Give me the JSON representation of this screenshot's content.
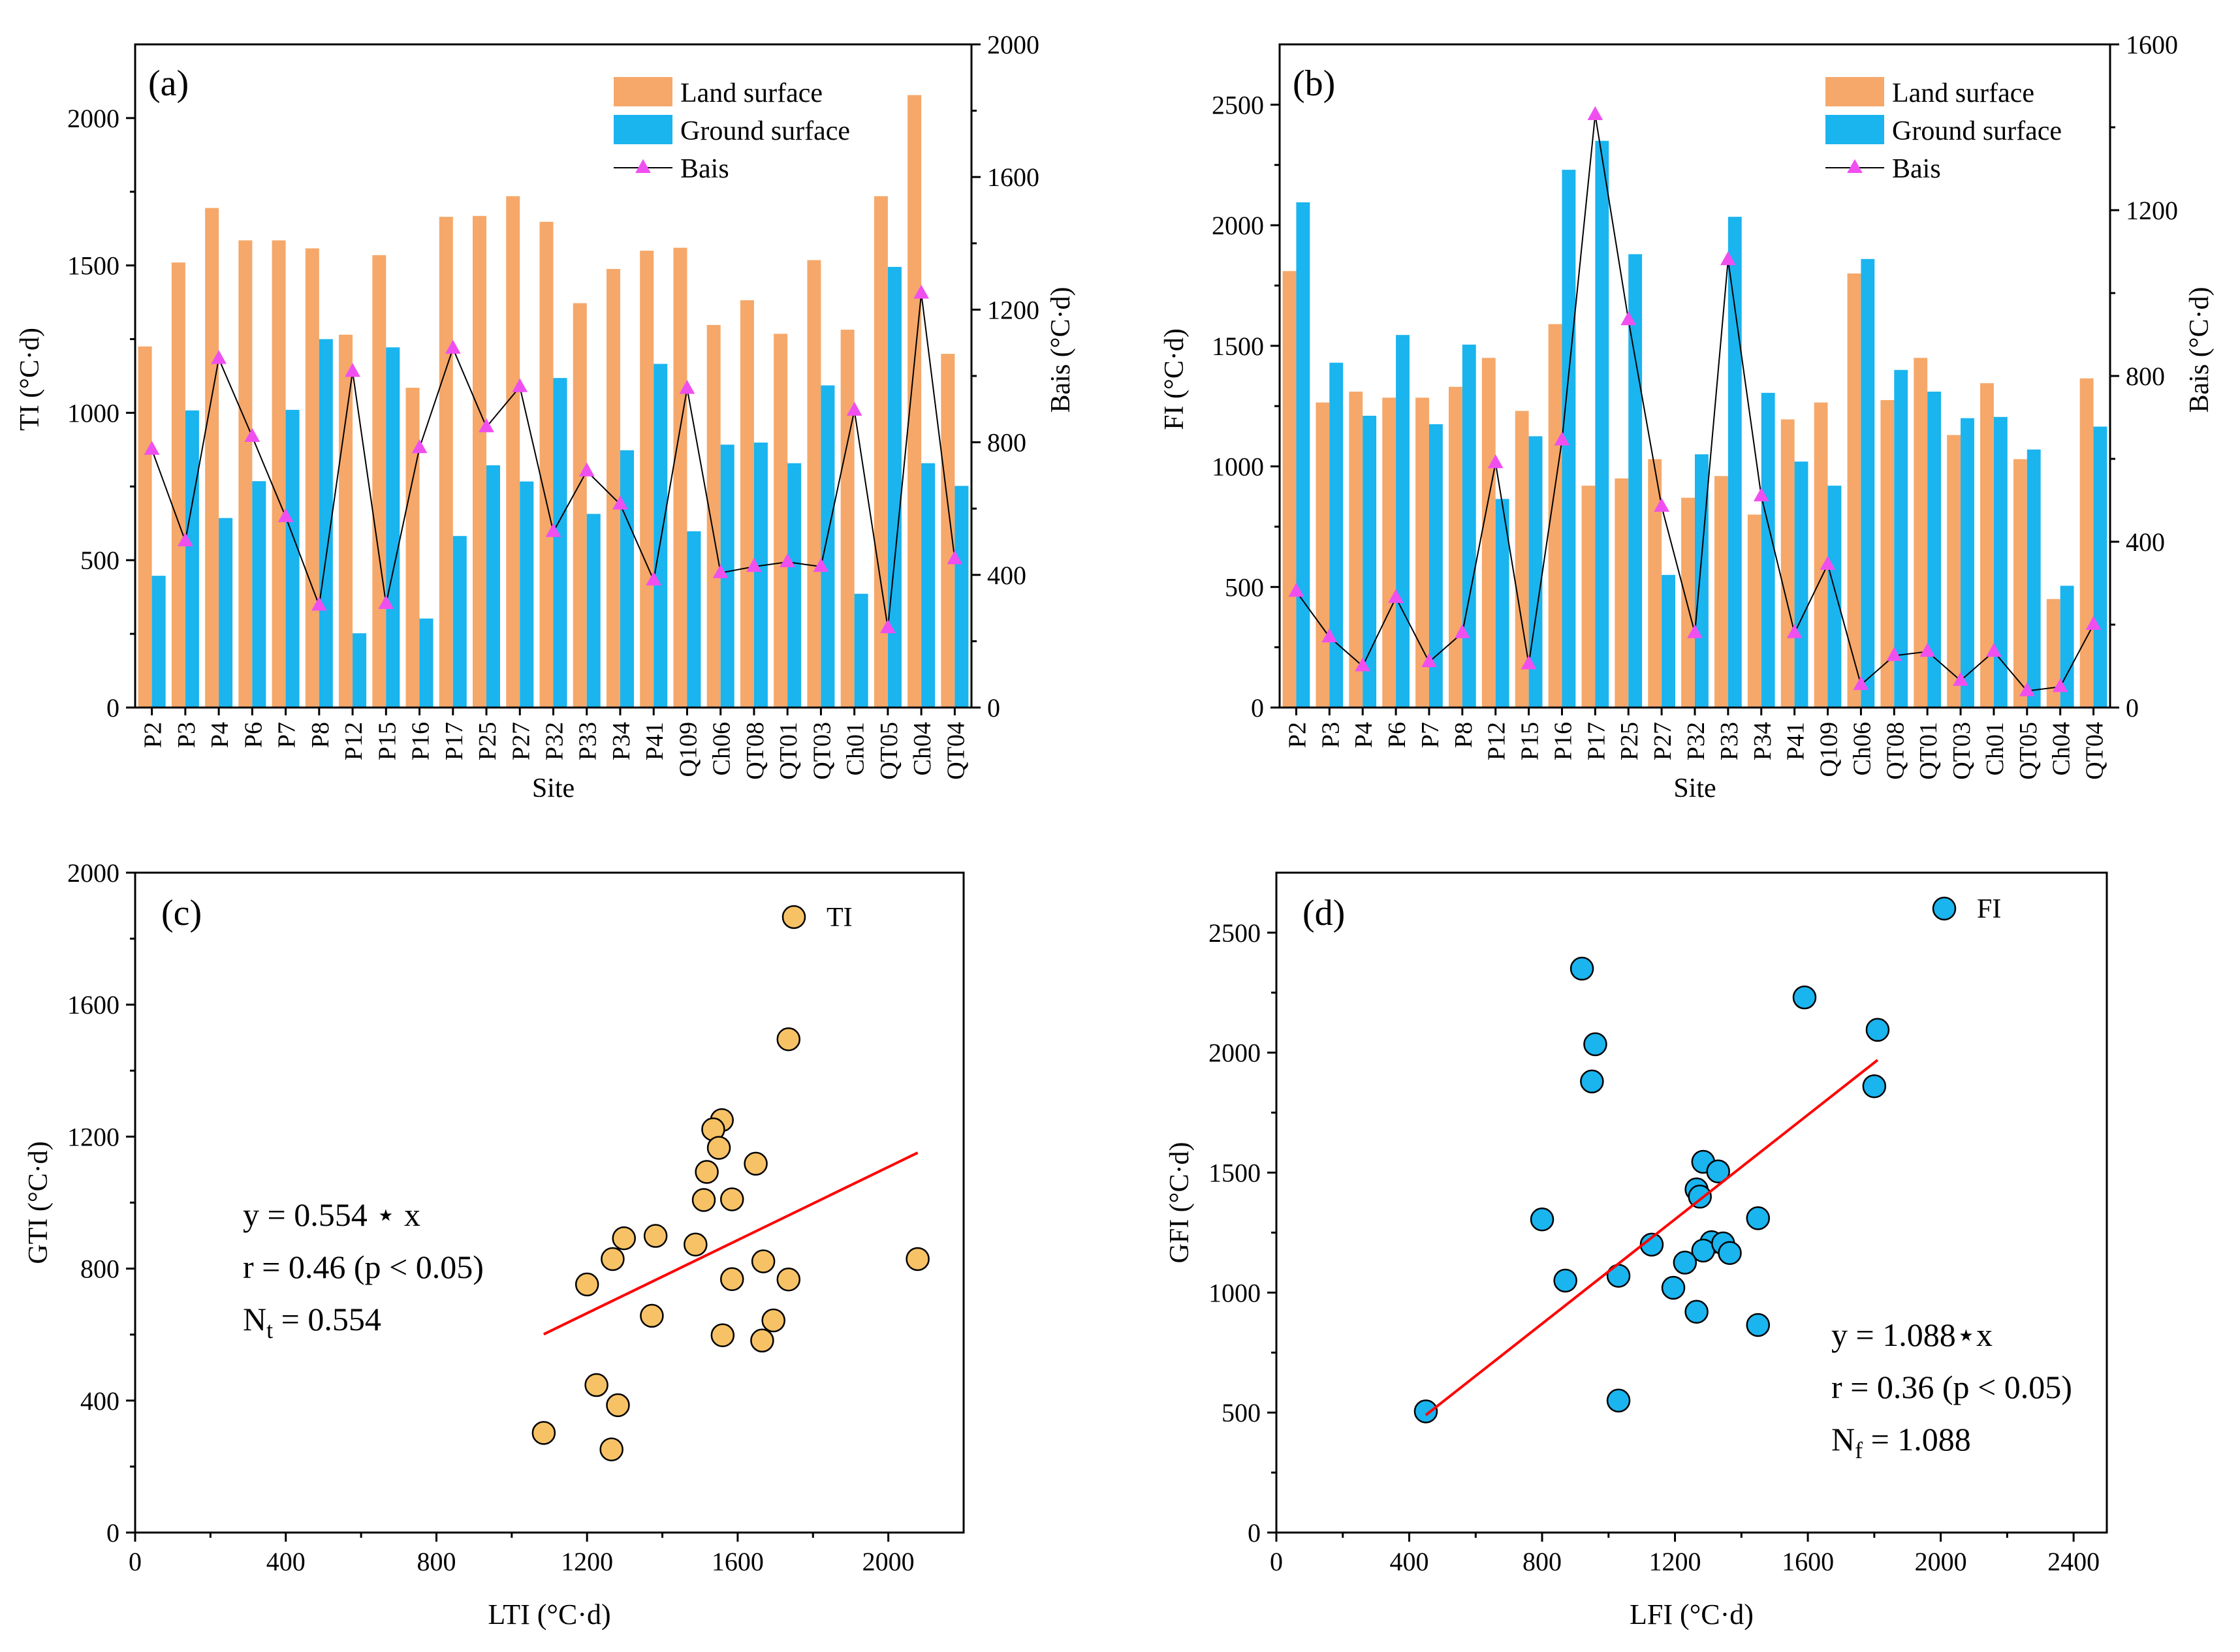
{
  "colors": {
    "land": "#f5a86a",
    "ground": "#1ab4ef",
    "bias": "#f04ff0",
    "scatter_ti": "#f7c266",
    "scatter_fi": "#1ab4ef",
    "fit": "#ff0000"
  },
  "chart_data": [
    {
      "panel": "(a)",
      "type": "bar",
      "categories": [
        "P2",
        "P3",
        "P4",
        "P6",
        "P7",
        "P8",
        "P12",
        "P15",
        "P16",
        "P17",
        "P25",
        "P27",
        "P32",
        "P33",
        "P34",
        "P41",
        "Q109",
        "Ch06",
        "QT08",
        "QT01",
        "QT03",
        "Ch01",
        "QT05",
        "Ch04",
        "QT04"
      ],
      "series": [
        {
          "name": "Land surface",
          "axis": "left",
          "values": [
            1225,
            1510,
            1695,
            1585,
            1585,
            1558,
            1265,
            1535,
            1085,
            1665,
            1668,
            1735,
            1648,
            1372,
            1488,
            1550,
            1560,
            1298,
            1382,
            1268,
            1518,
            1282,
            1735,
            2078,
            1200
          ]
        },
        {
          "name": "Ground surface",
          "axis": "left",
          "values": [
            447,
            1008,
            643,
            768,
            1010,
            1250,
            252,
            1222,
            302,
            582,
            822,
            767,
            1118,
            657,
            873,
            1166,
            598,
            892,
            899,
            829,
            1093,
            386,
            1495,
            829,
            752
          ]
        },
        {
          "name": "Bais",
          "type": "line",
          "axis": "right",
          "values": [
            778,
            502,
            1052,
            817,
            575,
            308,
            1013,
            313,
            783,
            1083,
            846,
            967,
            530,
            713,
            613,
            384,
            962,
            406,
            425,
            439,
            425,
            896,
            240,
            1249,
            448
          ]
        }
      ],
      "xlabel": "Site",
      "ylabel": "TI (°C·d)",
      "y2label": "Bais (°C·d)",
      "ylim": [
        0,
        2250
      ],
      "yticks": [
        0,
        500,
        1000,
        1500,
        2000
      ],
      "y2lim": [
        0,
        2000
      ],
      "y2ticks": [
        0,
        400,
        800,
        1200,
        1600,
        2000
      ],
      "legend": [
        "Land surface",
        "Ground surface",
        "Bais"
      ],
      "legend_position": "top-right"
    },
    {
      "panel": "(b)",
      "type": "bar",
      "categories": [
        "P2",
        "P3",
        "P4",
        "P6",
        "P7",
        "P8",
        "P12",
        "P15",
        "P16",
        "P17",
        "P25",
        "P27",
        "P32",
        "P33",
        "P34",
        "P41",
        "Q109",
        "Ch06",
        "QT08",
        "QT01",
        "QT03",
        "Ch01",
        "QT05",
        "Ch04",
        "QT04"
      ],
      "series": [
        {
          "name": "Land surface",
          "axis": "left",
          "values": [
            1810,
            1265,
            1310,
            1285,
            1285,
            1330,
            1450,
            1230,
            1590,
            920,
            950,
            1030,
            870,
            960,
            800,
            1195,
            1265,
            1800,
            1275,
            1450,
            1130,
            1345,
            1030,
            450,
            1365
          ]
        },
        {
          "name": "Ground surface",
          "axis": "left",
          "values": [
            2095,
            1430,
            1210,
            1545,
            1175,
            1505,
            865,
            1125,
            2230,
            2350,
            1880,
            550,
            1050,
            2035,
            1305,
            1020,
            920,
            1860,
            1400,
            1310,
            1200,
            1205,
            1070,
            505,
            1165
          ]
        },
        {
          "name": "Bais",
          "type": "line",
          "axis": "right",
          "values": [
            280,
            170,
            100,
            265,
            110,
            180,
            590,
            105,
            645,
            1430,
            935,
            485,
            180,
            1080,
            510,
            180,
            345,
            55,
            125,
            135,
            65,
            135,
            40,
            50,
            200
          ]
        }
      ],
      "xlabel": "Site",
      "ylabel": "FI (°C·d)",
      "y2label": "Bais (°C·d)",
      "ylim": [
        0,
        2750
      ],
      "yticks": [
        0,
        500,
        1000,
        1500,
        2000,
        2500
      ],
      "y2lim": [
        0,
        1600
      ],
      "y2ticks": [
        0,
        400,
        800,
        1200,
        1600
      ],
      "legend": [
        "Land surface",
        "Ground surface",
        "Bais"
      ],
      "legend_position": "top-right"
    },
    {
      "panel": "(c)",
      "type": "scatter",
      "series_name": "TI",
      "points": [
        [
          1225,
          447
        ],
        [
          1510,
          1008
        ],
        [
          1695,
          643
        ],
        [
          1585,
          768
        ],
        [
          1585,
          1010
        ],
        [
          1558,
          1250
        ],
        [
          1265,
          252
        ],
        [
          1535,
          1222
        ],
        [
          1085,
          302
        ],
        [
          1665,
          582
        ],
        [
          1668,
          822
        ],
        [
          1735,
          767
        ],
        [
          1648,
          1118
        ],
        [
          1372,
          657
        ],
        [
          1488,
          873
        ],
        [
          1550,
          1166
        ],
        [
          1560,
          598
        ],
        [
          1298,
          892
        ],
        [
          1382,
          899
        ],
        [
          1268,
          829
        ],
        [
          1518,
          1093
        ],
        [
          1282,
          386
        ],
        [
          1735,
          1495
        ],
        [
          2078,
          829
        ],
        [
          1200,
          752
        ]
      ],
      "fit": {
        "slope": 0.554,
        "x_range": [
          1085,
          2078
        ]
      },
      "annotation": [
        "y = 0.554 ⋆ x",
        "r = 0.46 (p < 0.05)",
        "N",
        "t",
        " = 0.554"
      ],
      "xlabel": "LTI (°C·d)",
      "ylabel": "GTI (°C·d)",
      "xlim": [
        0,
        2200
      ],
      "xticks": [
        0,
        400,
        800,
        1200,
        1600,
        2000
      ],
      "ylim": [
        0,
        2000
      ],
      "yticks": [
        0,
        400,
        800,
        1200,
        1600,
        2000
      ],
      "legend_position": "top-right"
    },
    {
      "panel": "(d)",
      "type": "scatter",
      "series_name": "FI",
      "points": [
        [
          1810,
          2095
        ],
        [
          1265,
          1430
        ],
        [
          1310,
          1210
        ],
        [
          1285,
          1545
        ],
        [
          1285,
          1175
        ],
        [
          1330,
          1505
        ],
        [
          1450,
          865
        ],
        [
          1230,
          1125
        ],
        [
          1590,
          2230
        ],
        [
          920,
          2350
        ],
        [
          950,
          1880
        ],
        [
          1030,
          550
        ],
        [
          870,
          1050
        ],
        [
          960,
          2035
        ],
        [
          800,
          1305
        ],
        [
          1195,
          1020
        ],
        [
          1265,
          920
        ],
        [
          1800,
          1860
        ],
        [
          1275,
          1400
        ],
        [
          1450,
          1310
        ],
        [
          1130,
          1200
        ],
        [
          1345,
          1205
        ],
        [
          1030,
          1070
        ],
        [
          450,
          505
        ],
        [
          1365,
          1165
        ]
      ],
      "fit": {
        "slope": 1.088,
        "x_range": [
          450,
          1810
        ]
      },
      "annotation": [
        "y = 1.088⋆x",
        "r = 0.36 (p < 0.05)",
        "N",
        "f",
        " = 1.088"
      ],
      "xlabel": "LFI (°C·d)",
      "ylabel": "GFI (°C·d)",
      "xlim": [
        0,
        2500
      ],
      "xticks": [
        0,
        400,
        800,
        1200,
        1600,
        2000,
        2400
      ],
      "ylim": [
        0,
        2750
      ],
      "yticks": [
        0,
        500,
        1000,
        1500,
        2000,
        2500
      ],
      "legend_position": "top-right"
    }
  ]
}
